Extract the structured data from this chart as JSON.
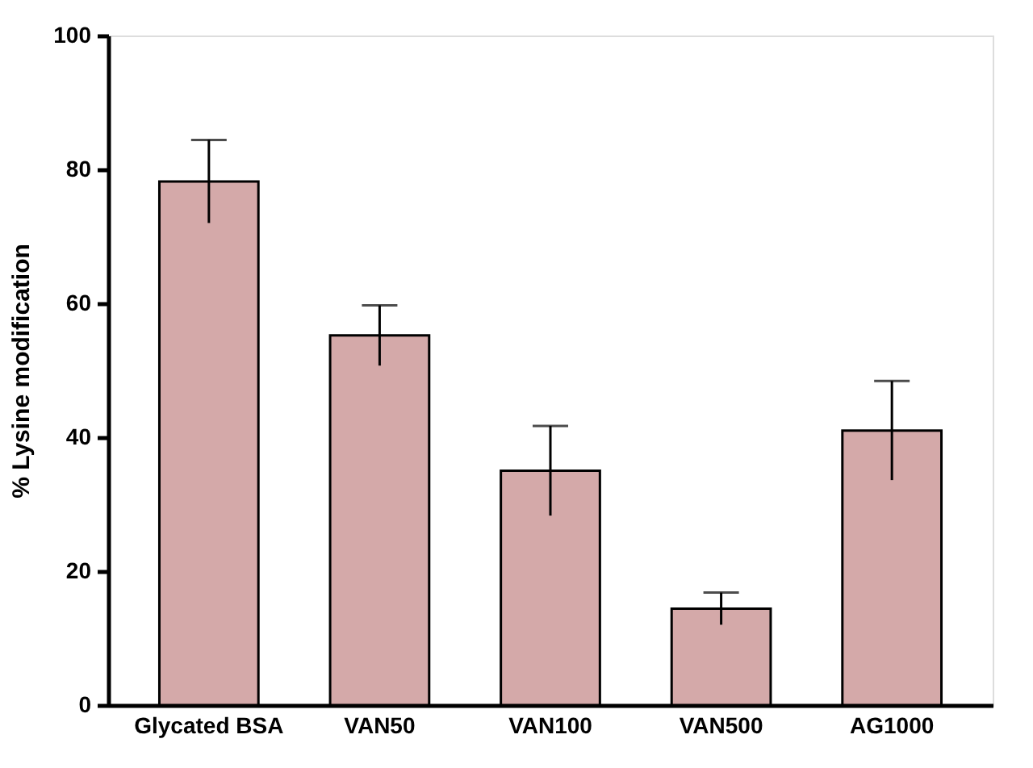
{
  "chart_data": {
    "type": "bar",
    "ylabel": "% Lysine modification",
    "categories": [
      "Glycated BSA",
      "VAN50",
      "VAN100",
      "VAN500",
      "AG1000"
    ],
    "values": [
      78.2,
      55.2,
      35,
      14.4,
      41
    ],
    "errors": [
      6.2,
      4.5,
      6.7,
      2.4,
      7.4
    ],
    "color": "#d4a9a9",
    "ylim": [
      0,
      100
    ],
    "yticks": [
      0,
      20,
      40,
      60,
      80,
      100
    ],
    "grid": false
  }
}
